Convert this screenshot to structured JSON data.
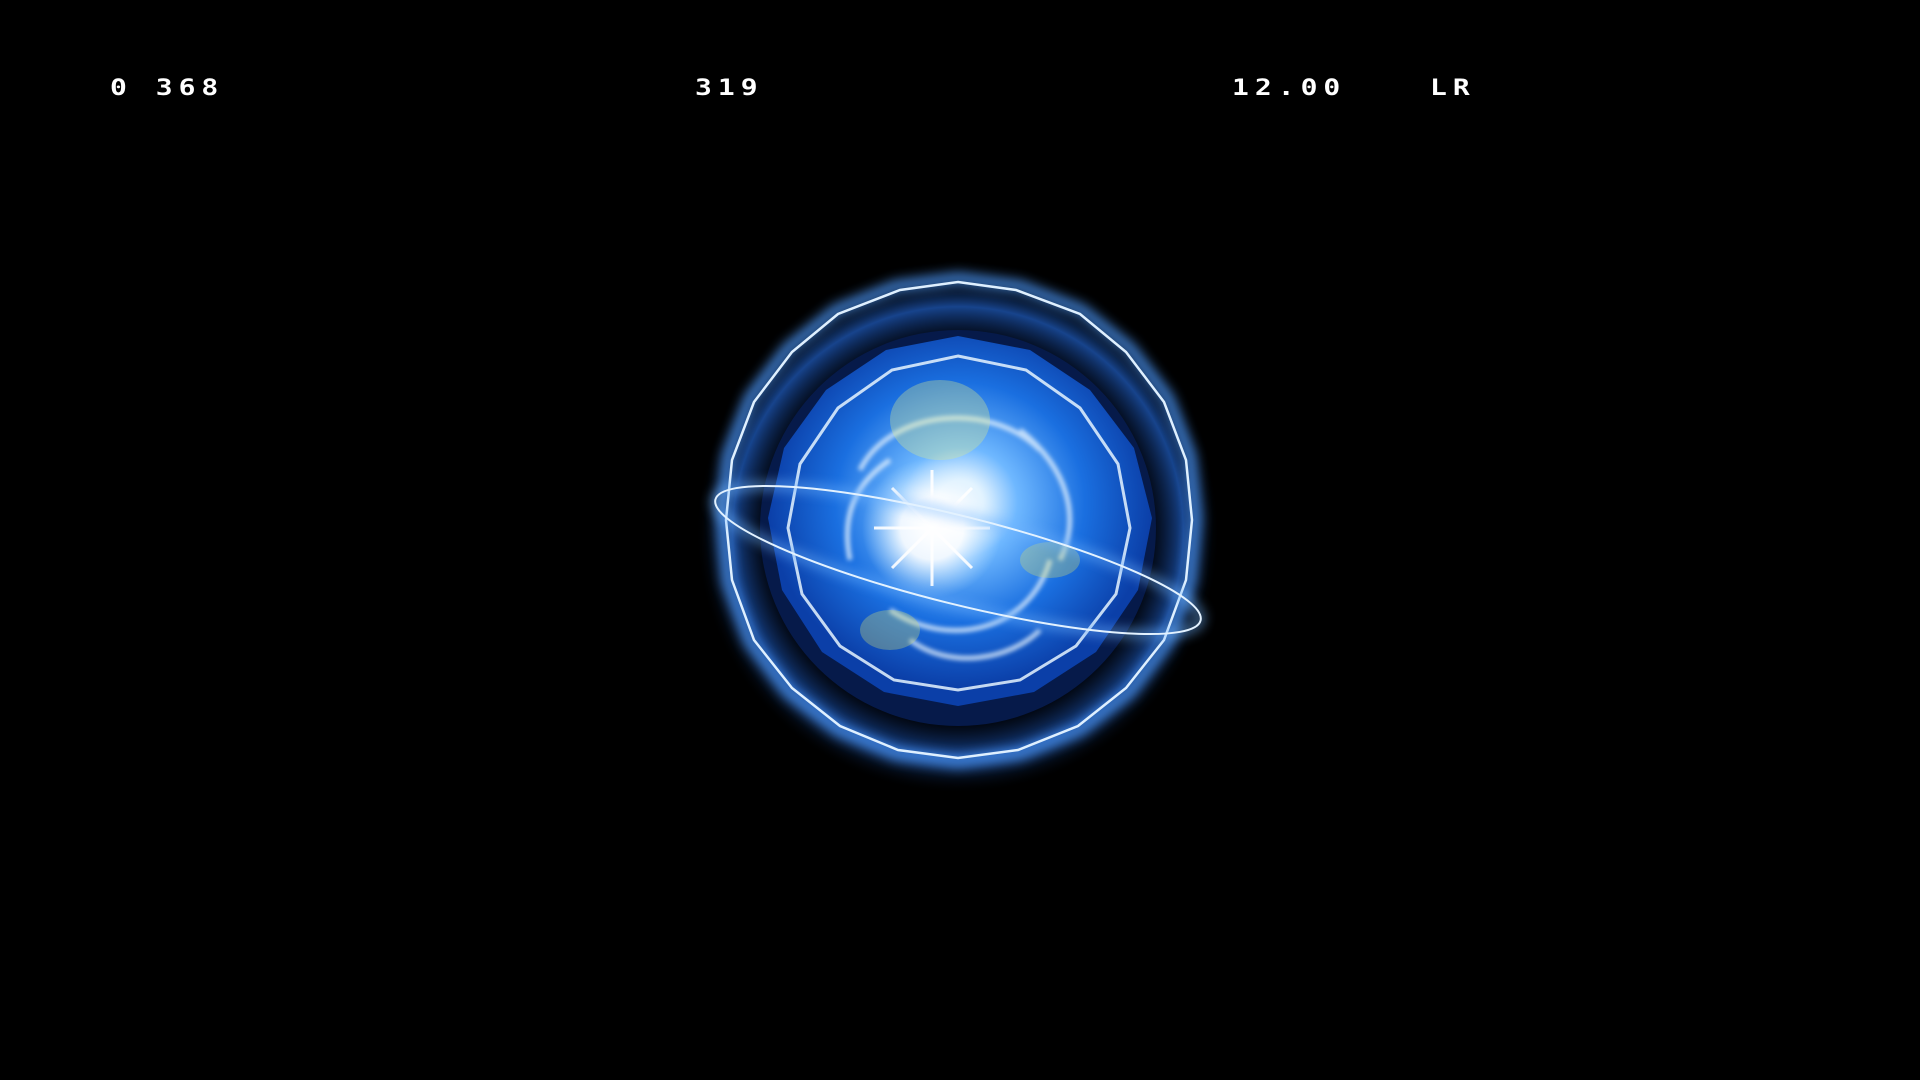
{
  "hud": {
    "left_readout": "0 368",
    "center_readout": "319",
    "time_readout": "12.00",
    "right_readout": "LR"
  },
  "scene": {
    "effect": "blue-energy-shield-sphere",
    "colors": {
      "background": "#000000",
      "orb_blue": "#1a6fe0",
      "orb_light": "#6fb8ff",
      "lightning": "#cfe8ff",
      "core": "#ffffff"
    }
  }
}
